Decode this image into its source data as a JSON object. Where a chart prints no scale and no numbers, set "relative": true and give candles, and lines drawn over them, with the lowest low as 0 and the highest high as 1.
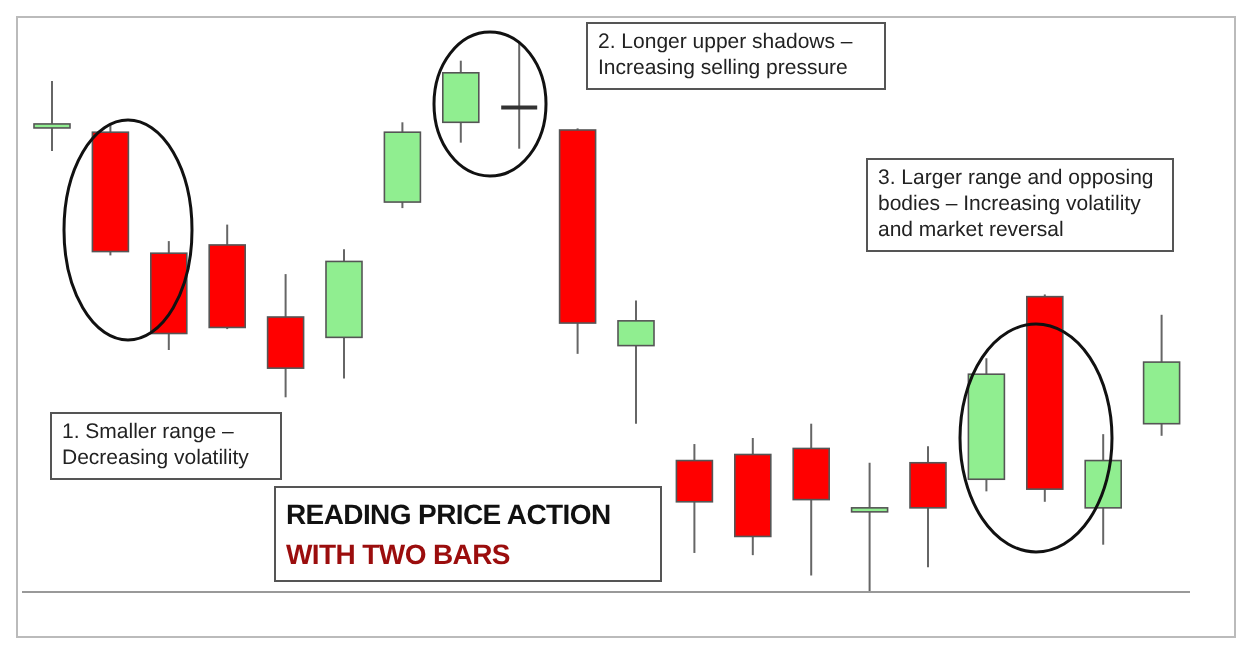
{
  "chart_data": {
    "type": "candlestick",
    "title": "READING PRICE ACTION",
    "subtitle": "WITH TWO BARS",
    "annotations": [
      "1. Smaller range – Decreasing volatility",
      "2. Longer upper shadows – Increasing selling pressure",
      "3. Larger range and opposing bodies – Increasing volatility and market reversal"
    ],
    "categories": [
      null,
      null,
      null,
      null,
      null,
      null,
      null,
      null,
      null,
      null,
      null,
      null,
      null,
      null,
      null,
      null,
      null,
      null,
      null,
      null
    ],
    "ohlc": [
      [
        0.847,
        0.929,
        0.802,
        0.851
      ],
      [
        0.836,
        0.851,
        0.612,
        0.619
      ],
      [
        0.616,
        0.638,
        0.44,
        0.47
      ],
      [
        0.631,
        0.668,
        0.478,
        0.481
      ],
      [
        0.5,
        0.578,
        0.354,
        0.407
      ],
      [
        0.463,
        0.623,
        0.388,
        0.601
      ],
      [
        0.709,
        0.854,
        0.698,
        0.836
      ],
      [
        0.854,
        0.966,
        0.817,
        0.944
      ],
      [
        0.881,
        1,
        0.806,
        0.881
      ],
      [
        0.84,
        0.843,
        0.433,
        0.489
      ],
      [
        0.448,
        0.53,
        0.306,
        0.493
      ],
      [
        0.239,
        0.269,
        0.071,
        0.164
      ],
      [
        0.25,
        0.28,
        0.067,
        0.101
      ],
      [
        0.261,
        0.306,
        0.03,
        0.168
      ],
      [
        0.146,
        0.235,
        0,
        0.153
      ],
      [
        0.235,
        0.265,
        0.045,
        0.153
      ],
      [
        0.205,
        0.425,
        0.183,
        0.396
      ],
      [
        0.537,
        0.541,
        0.164,
        0.187
      ],
      [
        0.153,
        0.287,
        0.086,
        0.239
      ],
      [
        0.306,
        0.504,
        0.284,
        0.418
      ]
    ],
    "colors": [
      "#90ee90",
      "#ff0000",
      "#ff0000",
      "#ff0000",
      "#ff0000",
      "#90ee90",
      "#90ee90",
      "#90ee90",
      "#333333",
      "#ff0000",
      "#90ee90",
      "#ff0000",
      "#ff0000",
      "#ff0000",
      "#90ee90",
      "#ff0000",
      "#90ee90",
      "#ff0000",
      "#90ee90",
      "#90ee90"
    ],
    "relative": true,
    "tick_labels": false
  }
}
